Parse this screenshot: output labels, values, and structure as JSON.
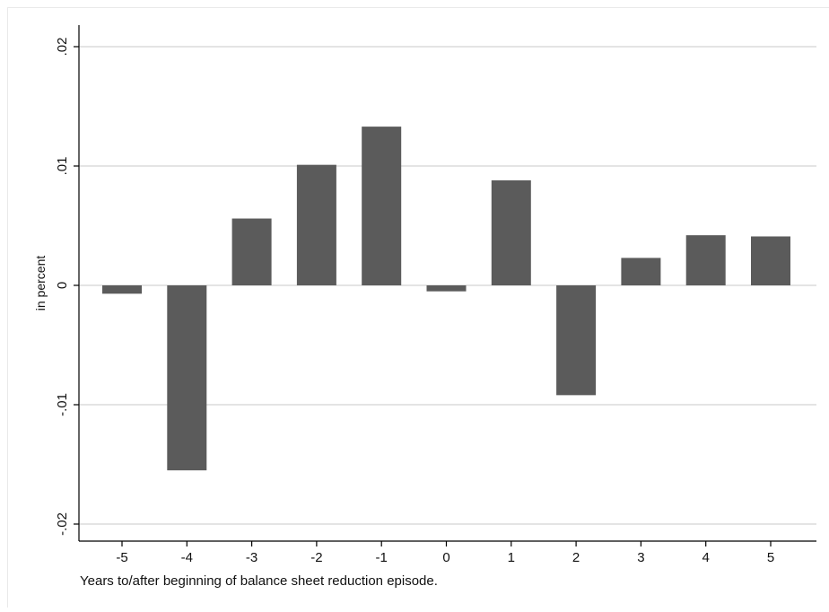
{
  "chart_data": {
    "type": "bar",
    "title": "",
    "xlabel": "Years to/after beginning of balance sheet reduction episode.",
    "ylabel": "in percent",
    "categories": [
      "-5",
      "-4",
      "-3",
      "-2",
      "-1",
      "0",
      "1",
      "2",
      "3",
      "4",
      "5"
    ],
    "values": [
      -0.0007,
      -0.0155,
      0.0056,
      0.0101,
      0.0133,
      -0.0005,
      0.0088,
      -0.0092,
      0.0023,
      0.0042,
      0.0041
    ],
    "ylim": [
      -0.02,
      0.02
    ],
    "yticks": [
      -0.02,
      -0.01,
      0,
      0.01,
      0.02
    ],
    "ytick_labels": [
      "-.02",
      "-.01",
      "0",
      ".01",
      ".02"
    ],
    "grid": true,
    "legend": "none",
    "bar_color": "#5b5b5b",
    "grid_color": "#dcdcdc",
    "axis_color": "#000000"
  }
}
